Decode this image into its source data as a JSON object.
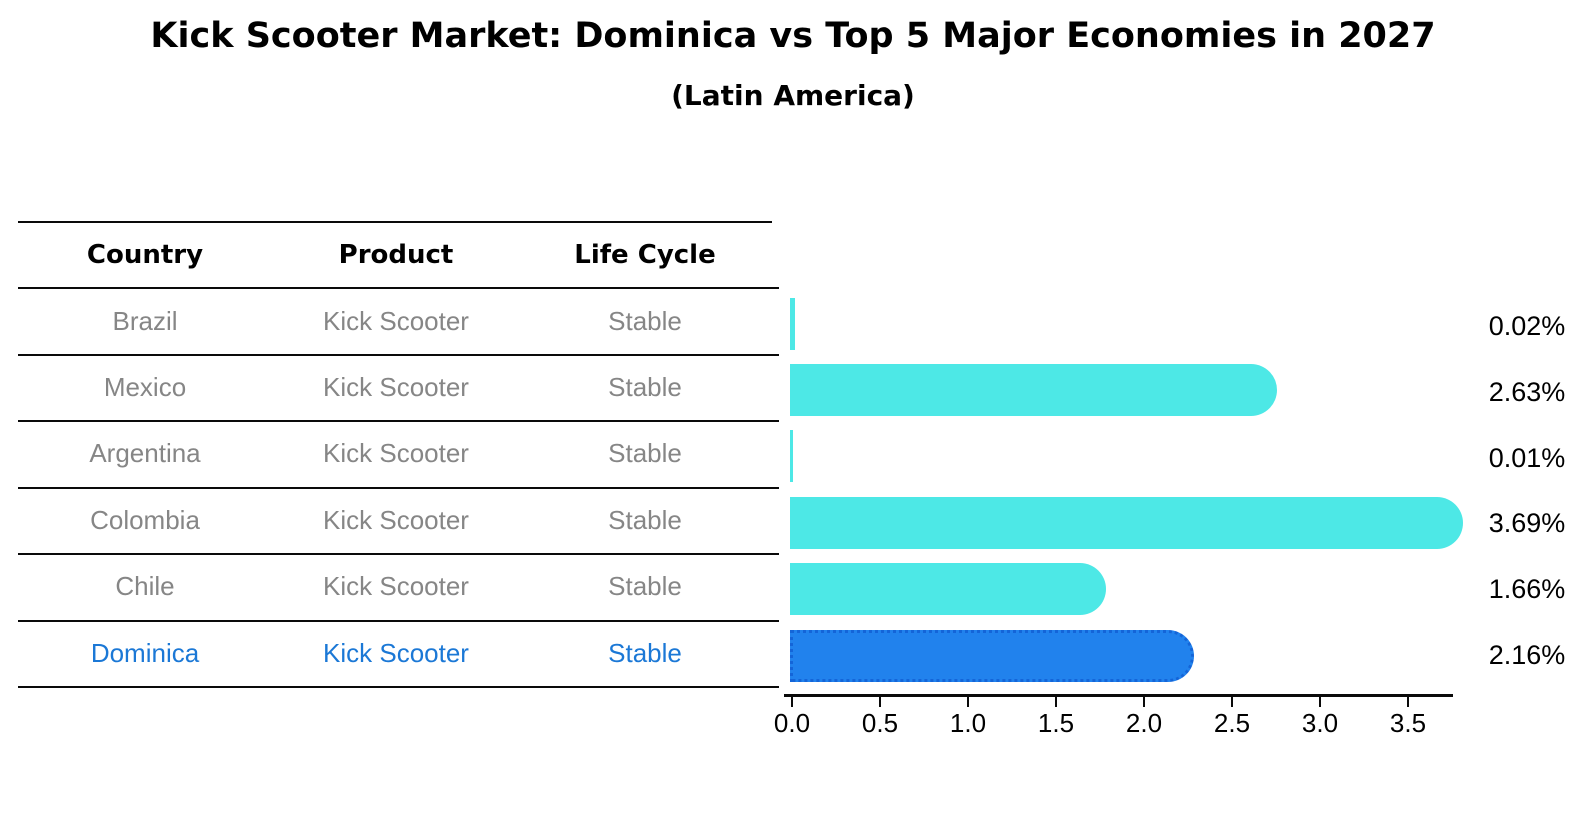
{
  "title": "Kick Scooter Market: Dominica vs Top 5 Major Economies in 2027",
  "subtitle": "(Latin America)",
  "table": {
    "headers": [
      "Country",
      "Product",
      "Life Cycle"
    ],
    "rows": [
      {
        "country": "Brazil",
        "product": "Kick Scooter",
        "life_cycle": "Stable"
      },
      {
        "country": "Mexico",
        "product": "Kick Scooter",
        "life_cycle": "Stable"
      },
      {
        "country": "Argentina",
        "product": "Kick Scooter",
        "life_cycle": "Stable"
      },
      {
        "country": "Colombia",
        "product": "Kick Scooter",
        "life_cycle": "Stable"
      },
      {
        "country": "Chile",
        "product": "Kick Scooter",
        "life_cycle": "Stable"
      },
      {
        "country": "Dominica",
        "product": "Kick Scooter",
        "life_cycle": "Stable"
      }
    ]
  },
  "chart_data": {
    "type": "bar",
    "orientation": "horizontal",
    "title": "Kick Scooter Market: Dominica vs Top 5 Major Economies in 2027",
    "subtitle": "(Latin America)",
    "categories": [
      "Brazil",
      "Mexico",
      "Argentina",
      "Colombia",
      "Chile",
      "Dominica"
    ],
    "values": [
      0.02,
      2.63,
      0.01,
      3.69,
      1.66,
      2.16
    ],
    "value_labels": [
      "0.02%",
      "2.63%",
      "0.01%",
      "3.69%",
      "1.66%",
      "2.16%"
    ],
    "x_ticks": [
      "0.0",
      "0.5",
      "1.0",
      "1.5",
      "2.0",
      "2.5",
      "3.0",
      "3.5"
    ],
    "xlim": [
      0,
      3.8
    ],
    "grid": false,
    "legend": false,
    "highlight_index": 5,
    "colors": {
      "bar": "#4DE8E6",
      "highlight_bar": "#2182ED",
      "highlight_border": "#1465D8",
      "highlight_text": "#1B78D6",
      "row_text": "#868686"
    }
  }
}
